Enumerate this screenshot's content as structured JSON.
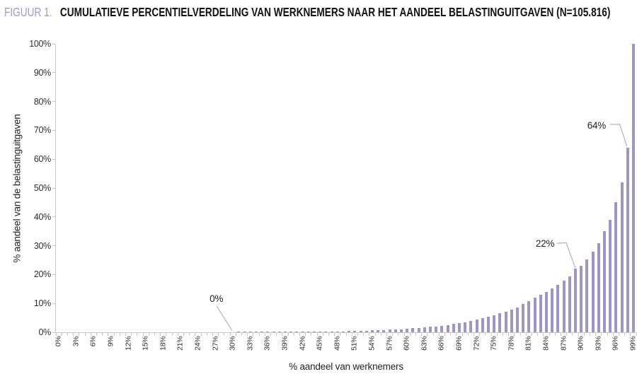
{
  "title": {
    "prefix": "FIGUUR 1.",
    "text": "CUMULATIEVE PERCENTIELVERDELING VAN WERKNEMERS NAAR HET AANDEEL BELASTINGUITGAVEN (N=105.816)"
  },
  "colors": {
    "bar": "#9b95c9",
    "title_prefix": "#9e99d1",
    "axis": "#c6c6c6",
    "leader_line": "#b3b0c4",
    "text": "#242424"
  },
  "chart_data": {
    "type": "bar",
    "title": "FIGUUR 1. CUMULATIEVE PERCENTIELVERDELING VAN WERKNEMERS NAAR HET AANDEEL BELASTINGUITGAVEN (N=105.816)",
    "xlabel": "% aandeel van werknemers",
    "ylabel": "% aandeel van de belastinguitgaven",
    "ylim": [
      0,
      100
    ],
    "grid": false,
    "legend": "none",
    "n": "105.816",
    "x_tick_labels": [
      "0%",
      "3%",
      "6%",
      "9%",
      "12%",
      "15%",
      "18%",
      "21%",
      "24%",
      "27%",
      "30%",
      "33%",
      "36%",
      "39%",
      "42%",
      "45%",
      "48%",
      "51%",
      "54%",
      "57%",
      "60%",
      "63%",
      "66%",
      "69%",
      "72%",
      "75%",
      "78%",
      "81%",
      "84%",
      "87%",
      "90%",
      "93%",
      "96%",
      "99%"
    ],
    "y_tick_labels": [
      "0%",
      "10%",
      "20%",
      "30%",
      "40%",
      "50%",
      "60%",
      "70%",
      "80%",
      "90%",
      "100%"
    ],
    "x_percentiles": "0-99, step 1",
    "values": [
      0,
      0,
      0,
      0,
      0,
      0,
      0,
      0,
      0,
      0,
      0,
      0,
      0,
      0,
      0,
      0,
      0,
      0,
      0,
      0,
      0,
      0,
      0,
      0,
      0,
      0,
      0,
      0,
      0,
      0,
      0,
      0.1,
      0.1,
      0.1,
      0.1,
      0.1,
      0.1,
      0.1,
      0.1,
      0.1,
      0.1,
      0.1,
      0.1,
      0.1,
      0.1,
      0.1,
      0.2,
      0.25,
      0.3,
      0.35,
      0.4,
      0.45,
      0.5,
      0.55,
      0.65,
      0.7,
      0.8,
      0.9,
      1.0,
      1.1,
      1.2,
      1.35,
      1.5,
      1.65,
      1.85,
      2.05,
      2.3,
      2.55,
      2.85,
      3.2,
      3.55,
      3.95,
      4.4,
      4.85,
      5.35,
      5.9,
      6.5,
      7.2,
      7.9,
      8.7,
      9.7,
      10.8,
      12.0,
      13.0,
      14.0,
      15.2,
      16.4,
      17.8,
      19.4,
      22.0,
      23.1,
      25.3,
      28.0,
      31.0,
      35.0,
      39.0,
      45.0,
      52.0,
      64.0,
      100.0
    ],
    "annotations": [
      {
        "label": "0%",
        "x_index": 30,
        "value": 0
      },
      {
        "label": "22%",
        "x_index": 89,
        "value": 22
      },
      {
        "label": "64%",
        "x_index": 98,
        "value": 64
      }
    ]
  }
}
